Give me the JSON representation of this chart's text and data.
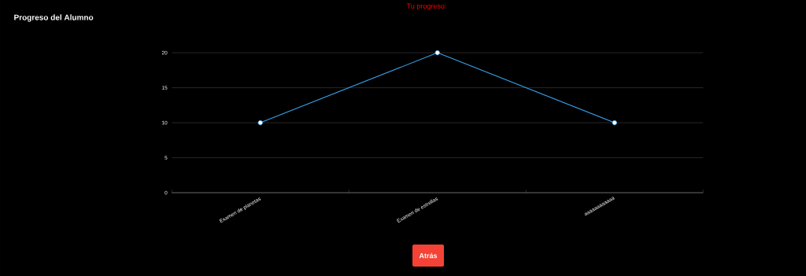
{
  "chart_data": {
    "type": "line",
    "title": "Progreso del Alumno",
    "categories": [
      "Examen de planetas",
      "Examen de estrellas",
      "aaaaaaaaaaaa"
    ],
    "series": [
      {
        "color": "#36a2eb",
        "values": [
          10,
          20,
          10
        ]
      }
    ],
    "ylim": [
      0,
      20
    ],
    "yticks": [
      0,
      5,
      10,
      15,
      20
    ],
    "grid": "y",
    "marker": "circle",
    "line_style": "solid",
    "annotations": [
      "Tu progreso:",
      "Atrás"
    ]
  }
}
